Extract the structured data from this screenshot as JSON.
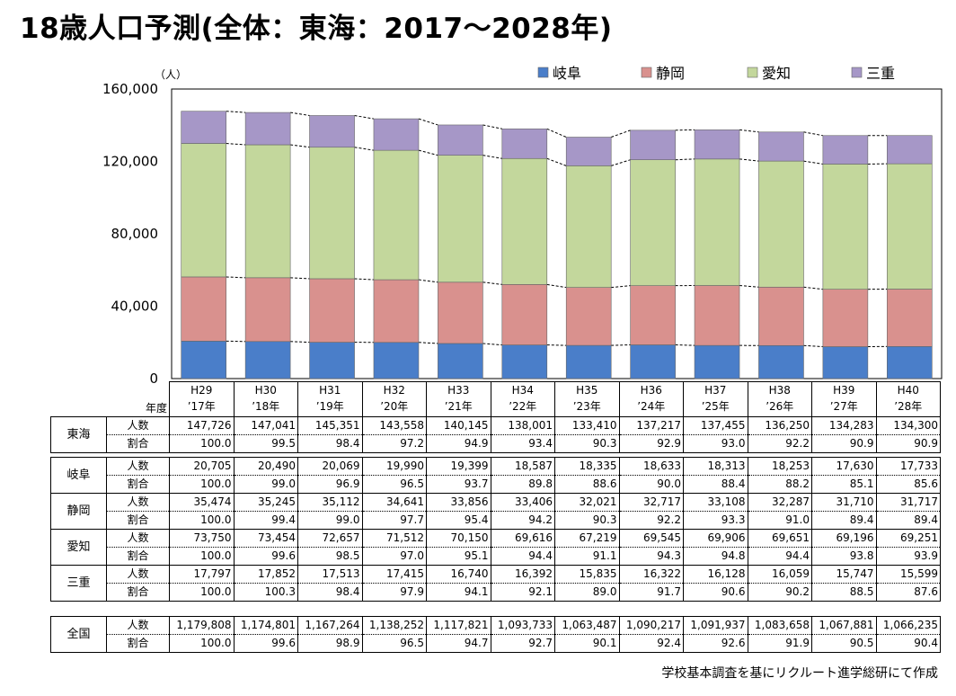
{
  "title": "18歳人口予測(全体：東海：2017～2028年)",
  "unit_label": "（人）",
  "source_note": "学校基本調査を基にリクルート進学総研にて作成",
  "colors": {
    "岐阜": "#4a7ec9",
    "静岡": "#d9918e",
    "愛知": "#c3d79c",
    "三重": "#a697c7"
  },
  "chart_data": {
    "type": "bar",
    "stacked": true,
    "categories": [
      "H29 ’17年",
      "H30 ’18年",
      "H31 ’19年",
      "H32 ’20年",
      "H33 ’21年",
      "H34 ’22年",
      "H35 ’23年",
      "H36 ’24年",
      "H37 ’25年",
      "H38 ’26年",
      "H39 ’27年",
      "H40 ’28年"
    ],
    "series": [
      {
        "name": "岐阜",
        "values": [
          20705,
          20490,
          20069,
          19990,
          19399,
          18587,
          18335,
          18633,
          18313,
          18253,
          17630,
          17733
        ]
      },
      {
        "name": "静岡",
        "values": [
          35474,
          35245,
          35112,
          34641,
          33856,
          33406,
          32021,
          32717,
          33108,
          32287,
          31710,
          31717
        ]
      },
      {
        "name": "愛知",
        "values": [
          73750,
          73454,
          72657,
          71512,
          70150,
          69616,
          67219,
          69545,
          69906,
          69651,
          69196,
          69251
        ]
      },
      {
        "name": "三重",
        "values": [
          17797,
          17852,
          17513,
          17415,
          16740,
          16392,
          15835,
          16322,
          16128,
          16059,
          15747,
          15599
        ]
      }
    ],
    "ylim": [
      0,
      160000
    ],
    "yticks": [
      "0",
      "40,000",
      "80,000",
      "120,000",
      "160,000"
    ],
    "legend_position": "top-right",
    "grid": false
  },
  "table": {
    "year_label": "年度",
    "years": [
      {
        "h": "H29",
        "w": "’17年"
      },
      {
        "h": "H30",
        "w": "’18年"
      },
      {
        "h": "H31",
        "w": "’19年"
      },
      {
        "h": "H32",
        "w": "’20年"
      },
      {
        "h": "H33",
        "w": "’21年"
      },
      {
        "h": "H34",
        "w": "’22年"
      },
      {
        "h": "H35",
        "w": "’23年"
      },
      {
        "h": "H36",
        "w": "’24年"
      },
      {
        "h": "H37",
        "w": "’25年"
      },
      {
        "h": "H38",
        "w": "’26年"
      },
      {
        "h": "H39",
        "w": "’27年"
      },
      {
        "h": "H40",
        "w": "’28年"
      }
    ],
    "count_label": "人数",
    "ratio_label": "割合",
    "groups": [
      {
        "name": "東海",
        "counts": [
          "147,726",
          "147,041",
          "145,351",
          "143,558",
          "140,145",
          "138,001",
          "133,410",
          "137,217",
          "137,455",
          "136,250",
          "134,283",
          "134,300"
        ],
        "ratios": [
          "100.0",
          "99.5",
          "98.4",
          "97.2",
          "94.9",
          "93.4",
          "90.3",
          "92.9",
          "93.0",
          "92.2",
          "90.9",
          "90.9"
        ]
      },
      {
        "name": "岐阜",
        "counts": [
          "20,705",
          "20,490",
          "20,069",
          "19,990",
          "19,399",
          "18,587",
          "18,335",
          "18,633",
          "18,313",
          "18,253",
          "17,630",
          "17,733"
        ],
        "ratios": [
          "100.0",
          "99.0",
          "96.9",
          "96.5",
          "93.7",
          "89.8",
          "88.6",
          "90.0",
          "88.4",
          "88.2",
          "85.1",
          "85.6"
        ]
      },
      {
        "name": "静岡",
        "counts": [
          "35,474",
          "35,245",
          "35,112",
          "34,641",
          "33,856",
          "33,406",
          "32,021",
          "32,717",
          "33,108",
          "32,287",
          "31,710",
          "31,717"
        ],
        "ratios": [
          "100.0",
          "99.4",
          "99.0",
          "97.7",
          "95.4",
          "94.2",
          "90.3",
          "92.2",
          "93.3",
          "91.0",
          "89.4",
          "89.4"
        ]
      },
      {
        "name": "愛知",
        "counts": [
          "73,750",
          "73,454",
          "72,657",
          "71,512",
          "70,150",
          "69,616",
          "67,219",
          "69,545",
          "69,906",
          "69,651",
          "69,196",
          "69,251"
        ],
        "ratios": [
          "100.0",
          "99.6",
          "98.5",
          "97.0",
          "95.1",
          "94.4",
          "91.1",
          "94.3",
          "94.8",
          "94.4",
          "93.8",
          "93.9"
        ]
      },
      {
        "name": "三重",
        "counts": [
          "17,797",
          "17,852",
          "17,513",
          "17,415",
          "16,740",
          "16,392",
          "15,835",
          "16,322",
          "16,128",
          "16,059",
          "15,747",
          "15,599"
        ],
        "ratios": [
          "100.0",
          "100.3",
          "98.4",
          "97.9",
          "94.1",
          "92.1",
          "89.0",
          "91.7",
          "90.6",
          "90.2",
          "88.5",
          "87.6"
        ]
      },
      {
        "name": "全国",
        "counts": [
          "1,179,808",
          "1,174,801",
          "1,167,264",
          "1,138,252",
          "1,117,821",
          "1,093,733",
          "1,063,487",
          "1,090,217",
          "1,091,937",
          "1,083,658",
          "1,067,881",
          "1,066,235"
        ],
        "ratios": [
          "100.0",
          "99.6",
          "98.9",
          "96.5",
          "94.7",
          "92.7",
          "90.1",
          "92.4",
          "92.6",
          "91.9",
          "90.5",
          "90.4"
        ]
      }
    ]
  }
}
